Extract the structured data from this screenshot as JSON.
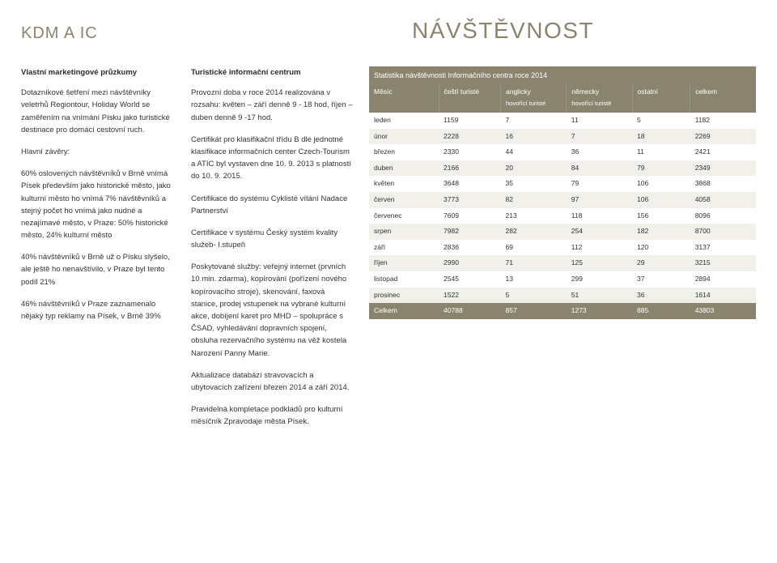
{
  "header": {
    "left": "KDM A IC",
    "right": "NÁVŠTĚVNOST"
  },
  "col1": {
    "subhead": "Vlastní marketingové průzkumy",
    "p1": "Dotazníkové šetření mezi návštěvníky veletrhů Regiontour, Holiday World se zaměřením na vnímání Písku jako turistické destinace pro domácí cestovní ruch.",
    "p2": "Hlavní závěry:",
    "p3": "60% oslovených návštěvníků v Brně vnímá Písek především jako historické město, jako kulturní město ho vnímá 7% návštěvníků a stejný počet ho vnímá jako nudné a nezajímavé město, v Praze: 50% historické město, 24% kulturní město",
    "p4": "40% návštěvníků v Brně už o Písku slyšelo, ale ještě ho nenavštívilo, v Praze byl tento podíl 21%",
    "p5": "46% návštěvníků v Praze zaznamenalo nějaký typ reklamy na Písek, v Brně 39%"
  },
  "col2": {
    "subhead": "Turistické informační centrum",
    "p1": "Provozní doba v roce 2014 realizována v rozsahu: květen – září denně 9 - 18 hod, říjen – duben denně 9 -17 hod.",
    "p2": "Certifikát pro klasifikační třídu B dle jednotné klasifikace informačních center Czech-Tourism a ATIC byl vystaven dne 10. 9. 2013 s platností do 10. 9. 2015.",
    "p3": "Certifikace do systému Cyklisté vítání Nadace Partnerství",
    "p4": "Certifikace v systému Český systém kvality služeb- I.stupeň",
    "p5": "Poskytované služby: veřejný internet (prvních 10 min. zdarma), kopírování (pořízení nového kopírovacího stroje), skenování, faxová stanice, prodej vstupenek na vybrané kulturní akce, dobíjení karet pro MHD – spolupráce s ČSAD, vyhledávání dopravních spojení, obsluha rezervačního systému na věž kostela Narození Panny Marie.",
    "p6": "Aktualizace databází stravovacích a ubytovacích zařízení březen 2014 a září 2014.",
    "p7": "Pravidelná kompletace podkladů pro kulturní měsíčník Zpravodaje města Písek."
  },
  "table": {
    "title": "Statistika návštěvnosti Informačního centra roce 2014",
    "cols": {
      "c0": "Měsíc",
      "c1": "čeští turisté",
      "c2": "anglicky",
      "c2s": "hovořící turisté",
      "c3": "německy",
      "c3s": "hovořící turisté",
      "c4": "ostatní",
      "c5": "celkem"
    },
    "rows": [
      {
        "m": "leden",
        "a": "1159",
        "b": "7",
        "c": "11",
        "d": "5",
        "e": "1182"
      },
      {
        "m": "únor",
        "a": "2228",
        "b": "16",
        "c": "7",
        "d": "18",
        "e": "2269"
      },
      {
        "m": "březen",
        "a": "2330",
        "b": "44",
        "c": "36",
        "d": "11",
        "e": "2421"
      },
      {
        "m": "duben",
        "a": "2166",
        "b": "20",
        "c": "84",
        "d": "79",
        "e": "2349"
      },
      {
        "m": "květen",
        "a": "3648",
        "b": "35",
        "c": "79",
        "d": "106",
        "e": "3868"
      },
      {
        "m": "červen",
        "a": "3773",
        "b": "82",
        "c": "97",
        "d": "106",
        "e": "4058"
      },
      {
        "m": "červenec",
        "a": "7609",
        "b": "213",
        "c": "118",
        "d": "156",
        "e": "8096"
      },
      {
        "m": "srpen",
        "a": "7982",
        "b": "282",
        "c": "254",
        "d": "182",
        "e": "8700"
      },
      {
        "m": "září",
        "a": "2836",
        "b": "69",
        "c": "112",
        "d": "120",
        "e": "3137"
      },
      {
        "m": "říjen",
        "a": "2990",
        "b": "71",
        "c": "125",
        "d": "29",
        "e": "3215"
      },
      {
        "m": "listopad",
        "a": "2545",
        "b": "13",
        "c": "299",
        "d": "37",
        "e": "2894"
      },
      {
        "m": "prosinec",
        "a": "1522",
        "b": "5",
        "c": "51",
        "d": "36",
        "e": "1614"
      }
    ],
    "total": {
      "m": "Celkem",
      "a": "40788",
      "b": "857",
      "c": "1273",
      "d": "885",
      "e": "43803"
    },
    "colors": {
      "header_bg": "#8a846f",
      "header_fg": "#ffffff",
      "row_odd_bg": "#ffffff",
      "row_even_bg": "#f2f0ea",
      "text": "#333333"
    },
    "col_widths": [
      "18%",
      "16%",
      "17%",
      "17%",
      "15%",
      "17%"
    ]
  }
}
